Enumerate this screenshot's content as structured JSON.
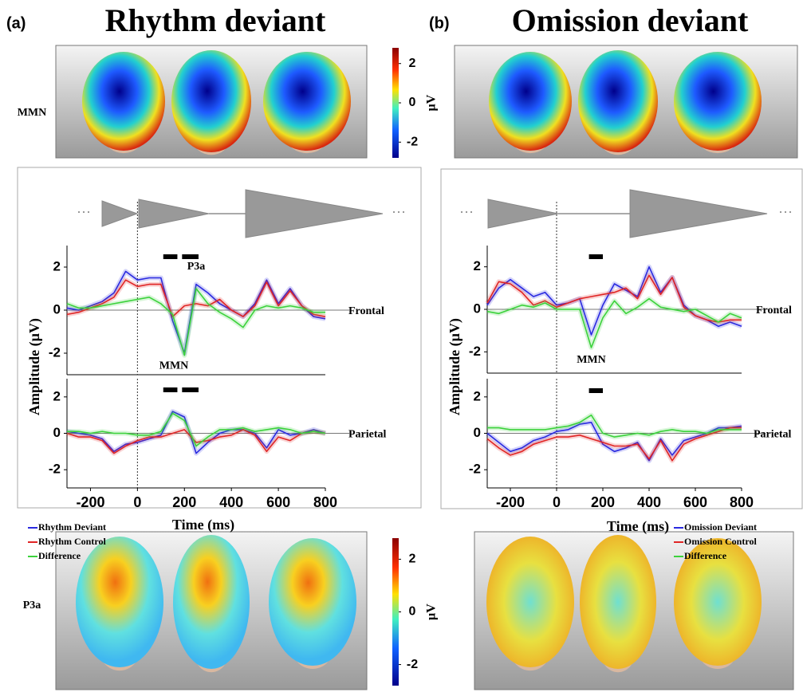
{
  "figure": {
    "panels": [
      {
        "label": "(a)",
        "title": "Rhythm deviant"
      },
      {
        "label": "(b)",
        "title": "Omission deviant"
      }
    ],
    "topomap_labels": [
      "MMN",
      "P3a"
    ],
    "colorbar": {
      "lim": [
        -2.8,
        2.8
      ],
      "ticks": [
        2,
        0,
        -2
      ],
      "label": "μV"
    },
    "ellipsis": "···"
  },
  "chart_data": [
    {
      "type": "line",
      "channel": "Frontal",
      "ylabel": "Amplitude (µV)",
      "x": [
        -300,
        -250,
        -200,
        -150,
        -100,
        -50,
        0,
        50,
        100,
        150,
        200,
        250,
        300,
        350,
        400,
        450,
        500,
        550,
        600,
        650,
        700,
        750,
        800
      ],
      "xlim": [
        -300,
        800
      ],
      "ylim": [
        -3,
        3
      ],
      "yticks": [
        -2,
        0,
        2
      ],
      "series": [
        {
          "color": "#2a2ae0",
          "values": [
            0.1,
            0.0,
            0.2,
            0.4,
            0.8,
            1.8,
            1.4,
            1.5,
            1.5,
            -0.5,
            -2.0,
            1.2,
            0.8,
            0.3,
            0.0,
            -0.3,
            0.3,
            1.4,
            0.3,
            1.0,
            0.2,
            -0.3,
            -0.4
          ]
        },
        {
          "color": "#e02525",
          "values": [
            -0.2,
            -0.1,
            0.1,
            0.3,
            0.6,
            1.4,
            1.1,
            1.2,
            1.2,
            -0.3,
            0.2,
            0.3,
            0.2,
            0.5,
            0.0,
            -0.3,
            0.2,
            1.3,
            0.2,
            0.9,
            0.2,
            -0.2,
            -0.3
          ]
        },
        {
          "color": "#3cd23c",
          "values": [
            0.3,
            0.1,
            0.1,
            0.2,
            0.3,
            0.4,
            0.5,
            0.6,
            0.3,
            -0.2,
            -2.1,
            1.0,
            0.3,
            -0.1,
            -0.4,
            -0.8,
            0.0,
            0.2,
            0.1,
            0.2,
            0.1,
            -0.1,
            -0.1
          ]
        }
      ],
      "sig_bars": [
        [
          110,
          170
        ],
        [
          190,
          260
        ]
      ],
      "annotations": [
        {
          "text": "P3a",
          "x": 250,
          "y": 2.0
        },
        {
          "text": "MMN",
          "x": 155,
          "y": -2.6
        }
      ]
    },
    {
      "type": "line",
      "channel": "Parietal",
      "xlabel": "Time (ms)",
      "x": [
        -300,
        -250,
        -200,
        -150,
        -100,
        -50,
        0,
        50,
        100,
        150,
        200,
        250,
        300,
        350,
        400,
        450,
        500,
        550,
        600,
        650,
        700,
        750,
        800
      ],
      "xlim": [
        -300,
        800
      ],
      "ylim": [
        -3,
        3
      ],
      "yticks": [
        -2,
        0,
        2
      ],
      "xticks": [
        -200,
        0,
        200,
        400,
        600,
        800
      ],
      "series": [
        {
          "name": "Rhythm Deviant",
          "color": "#2a2ae0",
          "values": [
            0.1,
            0.0,
            -0.1,
            -0.3,
            -1.0,
            -0.6,
            -0.5,
            -0.3,
            -0.1,
            1.2,
            0.9,
            -1.1,
            -0.5,
            0.0,
            0.2,
            0.2,
            0.0,
            -0.8,
            0.2,
            -0.1,
            0.0,
            0.2,
            0.0
          ]
        },
        {
          "name": "Rhythm Control",
          "color": "#e02525",
          "values": [
            0.0,
            -0.2,
            -0.2,
            -0.4,
            -1.1,
            -0.7,
            -0.4,
            -0.2,
            -0.2,
            0.0,
            0.2,
            -0.5,
            -0.4,
            -0.2,
            -0.1,
            0.2,
            -0.1,
            -1.0,
            -0.2,
            -0.4,
            0.0,
            0.1,
            0.0
          ]
        },
        {
          "name": "Difference",
          "color": "#3cd23c",
          "values": [
            0.1,
            0.1,
            0.0,
            0.1,
            0.0,
            0.0,
            -0.1,
            -0.1,
            0.1,
            1.1,
            0.7,
            -0.7,
            -0.2,
            0.2,
            0.2,
            0.3,
            0.1,
            0.2,
            0.3,
            0.2,
            0.0,
            0.1,
            0.0
          ]
        }
      ],
      "sig_bars": [
        [
          110,
          170
        ],
        [
          190,
          260
        ]
      ]
    },
    {
      "type": "line",
      "channel": "Frontal",
      "ylabel": "Amplitude (µV)",
      "x": [
        -300,
        -250,
        -200,
        -150,
        -100,
        -50,
        0,
        50,
        100,
        150,
        200,
        250,
        300,
        350,
        400,
        450,
        500,
        550,
        600,
        650,
        700,
        750,
        800
      ],
      "xlim": [
        -300,
        800
      ],
      "ylim": [
        -3,
        3
      ],
      "yticks": [
        -2,
        0,
        2
      ],
      "series": [
        {
          "color": "#2a2ae0",
          "values": [
            0.2,
            1.0,
            1.4,
            1.0,
            0.6,
            0.8,
            0.2,
            0.3,
            0.5,
            -1.2,
            0.2,
            1.2,
            0.9,
            0.6,
            2.0,
            0.8,
            1.5,
            0.2,
            -0.3,
            -0.5,
            -0.8,
            -0.6,
            -0.8
          ]
        },
        {
          "color": "#e02525",
          "values": [
            0.3,
            1.3,
            1.2,
            0.8,
            0.2,
            0.4,
            0.1,
            0.3,
            0.5,
            0.6,
            0.7,
            0.8,
            1.0,
            0.5,
            1.6,
            0.7,
            1.5,
            0.1,
            -0.3,
            -0.5,
            -0.6,
            -0.5,
            -0.5
          ]
        },
        {
          "color": "#3cd23c",
          "values": [
            -0.1,
            -0.2,
            0.0,
            0.2,
            0.1,
            0.3,
            0.0,
            0.0,
            0.0,
            -1.8,
            -0.4,
            0.4,
            -0.2,
            0.1,
            0.5,
            0.1,
            0.0,
            -0.1,
            0.0,
            -0.3,
            -0.6,
            -0.2,
            -0.4
          ]
        }
      ],
      "sig_bars": [
        [
          140,
          200
        ]
      ],
      "annotations": [
        {
          "text": "MMN",
          "x": 150,
          "y": -2.4
        }
      ]
    },
    {
      "type": "line",
      "channel": "Parietal",
      "xlabel": "Time (ms)",
      "x": [
        -300,
        -250,
        -200,
        -150,
        -100,
        -50,
        0,
        50,
        100,
        150,
        200,
        250,
        300,
        350,
        400,
        450,
        500,
        550,
        600,
        650,
        700,
        750,
        800
      ],
      "xlim": [
        -300,
        800
      ],
      "ylim": [
        -3,
        3
      ],
      "yticks": [
        -2,
        0,
        2
      ],
      "xticks": [
        -200,
        0,
        200,
        400,
        600,
        800
      ],
      "series": [
        {
          "name": "Omission Deviant",
          "color": "#2a2ae0",
          "values": [
            0.0,
            -0.5,
            -1.0,
            -0.8,
            -0.4,
            -0.2,
            0.1,
            0.2,
            0.5,
            0.6,
            -0.6,
            -1.0,
            -0.8,
            -0.5,
            -1.5,
            -0.3,
            -1.2,
            -0.4,
            -0.2,
            0.0,
            0.3,
            0.3,
            0.4
          ]
        },
        {
          "name": "Omission Control",
          "color": "#e02525",
          "values": [
            -0.3,
            -0.8,
            -1.2,
            -1.0,
            -0.6,
            -0.4,
            -0.2,
            -0.2,
            -0.1,
            -0.3,
            -0.5,
            -0.7,
            -0.7,
            -0.6,
            -1.4,
            -0.4,
            -1.5,
            -0.6,
            -0.3,
            -0.1,
            0.1,
            0.3,
            0.3
          ]
        },
        {
          "name": "Difference",
          "color": "#3cd23c",
          "values": [
            0.3,
            0.3,
            0.2,
            0.2,
            0.2,
            0.2,
            0.3,
            0.4,
            0.6,
            1.0,
            0.0,
            -0.2,
            -0.1,
            0.0,
            -0.1,
            0.1,
            0.2,
            0.1,
            0.1,
            0.0,
            0.2,
            0.2,
            0.2
          ]
        }
      ],
      "sig_bars": [
        [
          140,
          200
        ]
      ]
    }
  ]
}
